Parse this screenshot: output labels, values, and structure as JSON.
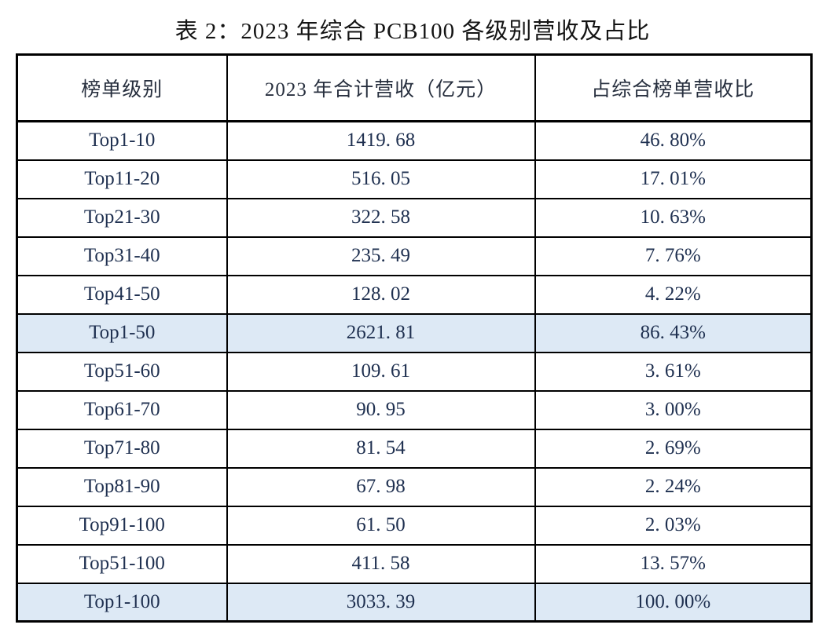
{
  "title": "表 2：2023 年综合 PCB100 各级别营收及占比",
  "table": {
    "headers": [
      "榜单级别",
      "2023 年合计营收（亿元）",
      "占综合榜单营收比"
    ],
    "rows": [
      {
        "level": "Top1-10",
        "revenue": "1419. 68",
        "share": "46. 80%",
        "highlight": false
      },
      {
        "level": "Top11-20",
        "revenue": "516. 05",
        "share": "17. 01%",
        "highlight": false
      },
      {
        "level": "Top21-30",
        "revenue": "322. 58",
        "share": "10. 63%",
        "highlight": false
      },
      {
        "level": "Top31-40",
        "revenue": "235. 49",
        "share": "7. 76%",
        "highlight": false
      },
      {
        "level": "Top41-50",
        "revenue": "128. 02",
        "share": "4. 22%",
        "highlight": false
      },
      {
        "level": "Top1-50",
        "revenue": "2621. 81",
        "share": "86. 43%",
        "highlight": true
      },
      {
        "level": "Top51-60",
        "revenue": "109. 61",
        "share": "3. 61%",
        "highlight": false
      },
      {
        "level": "Top61-70",
        "revenue": "90. 95",
        "share": "3. 00%",
        "highlight": false
      },
      {
        "level": "Top71-80",
        "revenue": "81. 54",
        "share": "2. 69%",
        "highlight": false
      },
      {
        "level": "Top81-90",
        "revenue": "67. 98",
        "share": "2. 24%",
        "highlight": false
      },
      {
        "level": "Top91-100",
        "revenue": "61. 50",
        "share": "2. 03%",
        "highlight": false
      },
      {
        "level": "Top51-100",
        "revenue": "411. 58",
        "share": "13. 57%",
        "highlight": false
      },
      {
        "level": "Top1-100",
        "revenue": "3033. 39",
        "share": "100. 00%",
        "highlight": true
      }
    ]
  },
  "colors": {
    "highlight_row": "#dde9f5",
    "border": "#000000",
    "cell_text": "#1f3050",
    "title_text": "#141414",
    "page_background": "#ffffff"
  }
}
